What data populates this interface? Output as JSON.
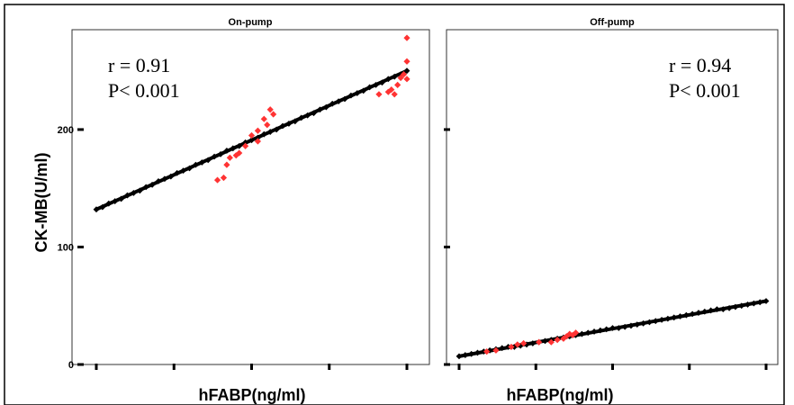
{
  "chart_data": [
    {
      "type": "scatter",
      "title": "On-pump",
      "xlabel": "hFABP(ng/ml)",
      "ylabel": "CK-MB(U/ml)",
      "ylim": [
        0,
        285
      ],
      "xlim": [
        0,
        1
      ],
      "yticks": [
        0,
        100,
        200
      ],
      "xticks": [
        0,
        0.25,
        0.5,
        0.75,
        1.0
      ],
      "annotations": [
        "r = 0.91",
        "P< 0.001"
      ],
      "annotation_position": "top-left",
      "series": [
        {
          "color": "#000000",
          "fit_line": {
            "x0": 0.0,
            "y0": 132,
            "x1": 1.0,
            "y1": 250
          },
          "x": [
            0.0,
            0.02,
            0.04,
            0.06,
            0.08,
            0.1,
            0.12,
            0.14,
            0.16,
            0.18,
            0.2,
            0.22,
            0.24,
            0.26,
            0.28,
            0.3,
            0.32,
            0.34,
            0.36,
            0.38,
            0.4,
            0.42,
            0.44,
            0.46,
            0.48,
            0.5,
            0.52,
            0.54,
            0.56,
            0.58,
            0.6,
            0.62,
            0.64,
            0.66,
            0.68,
            0.7,
            0.72,
            0.74,
            0.76,
            0.78,
            0.8,
            0.82,
            0.84,
            0.86,
            0.88,
            0.9,
            0.92,
            0.94,
            0.96,
            0.98,
            1.0
          ],
          "y": [
            132,
            134,
            137,
            139,
            141,
            144,
            146,
            148,
            151,
            153,
            156,
            158,
            160,
            163,
            165,
            167,
            170,
            172,
            174,
            177,
            179,
            182,
            184,
            186,
            189,
            191,
            193,
            196,
            198,
            200,
            203,
            205,
            207,
            210,
            212,
            214,
            217,
            219,
            222,
            224,
            226,
            229,
            231,
            233,
            236,
            238,
            240,
            243,
            245,
            247,
            250
          ]
        },
        {
          "color": "#ff3333",
          "x": [
            0.39,
            0.41,
            0.42,
            0.43,
            0.45,
            0.46,
            0.48,
            0.5,
            0.52,
            0.55,
            0.57,
            0.56,
            0.54,
            0.52,
            0.91,
            0.94,
            0.95,
            0.96,
            0.97,
            0.98,
            0.99,
            1.0,
            1.0,
            1.0
          ],
          "y": [
            157,
            159,
            170,
            176,
            178,
            180,
            186,
            195,
            199,
            204,
            213,
            217,
            209,
            190,
            230,
            232,
            234,
            230,
            238,
            244,
            247,
            258,
            278,
            243
          ]
        }
      ]
    },
    {
      "type": "scatter",
      "title": "Off-pump",
      "xlabel": "hFABP(ng/ml)",
      "ylabel": "",
      "ylim": [
        0,
        285
      ],
      "xlim": [
        0,
        1
      ],
      "yticks": [
        0,
        100,
        200
      ],
      "xticks": [
        0,
        0.25,
        0.5,
        0.75,
        1.0
      ],
      "annotations": [
        "r = 0.94",
        "P< 0.001"
      ],
      "annotation_position": "top-right",
      "series": [
        {
          "color": "#000000",
          "fit_line": {
            "x0": 0.0,
            "y0": 7,
            "x1": 1.0,
            "y1": 54
          },
          "x": [
            0.0,
            0.02,
            0.04,
            0.06,
            0.08,
            0.1,
            0.12,
            0.14,
            0.16,
            0.18,
            0.2,
            0.22,
            0.24,
            0.26,
            0.28,
            0.3,
            0.32,
            0.34,
            0.36,
            0.38,
            0.4,
            0.42,
            0.44,
            0.46,
            0.48,
            0.5,
            0.52,
            0.54,
            0.56,
            0.58,
            0.6,
            0.62,
            0.64,
            0.66,
            0.68,
            0.7,
            0.72,
            0.74,
            0.76,
            0.78,
            0.8,
            0.82,
            0.84,
            0.86,
            0.88,
            0.9,
            0.92,
            0.94,
            0.96,
            0.98,
            1.0
          ],
          "y": [
            7,
            8,
            9,
            10,
            11,
            12,
            13,
            14,
            15,
            15,
            16,
            17,
            18,
            19,
            20,
            21,
            22,
            23,
            24,
            25,
            26,
            27,
            28,
            29,
            30,
            31,
            31,
            32,
            33,
            34,
            35,
            36,
            37,
            38,
            39,
            40,
            41,
            42,
            43,
            44,
            45,
            46,
            47,
            47,
            48,
            49,
            50,
            51,
            52,
            53,
            54
          ]
        },
        {
          "color": "#ff3333",
          "x": [
            0.09,
            0.12,
            0.17,
            0.19,
            0.21,
            0.26,
            0.3,
            0.32,
            0.34,
            0.35,
            0.36,
            0.37,
            0.38
          ],
          "y": [
            11,
            12,
            15,
            17,
            18,
            19,
            19,
            21,
            22,
            24,
            26,
            25,
            27
          ]
        }
      ]
    }
  ]
}
